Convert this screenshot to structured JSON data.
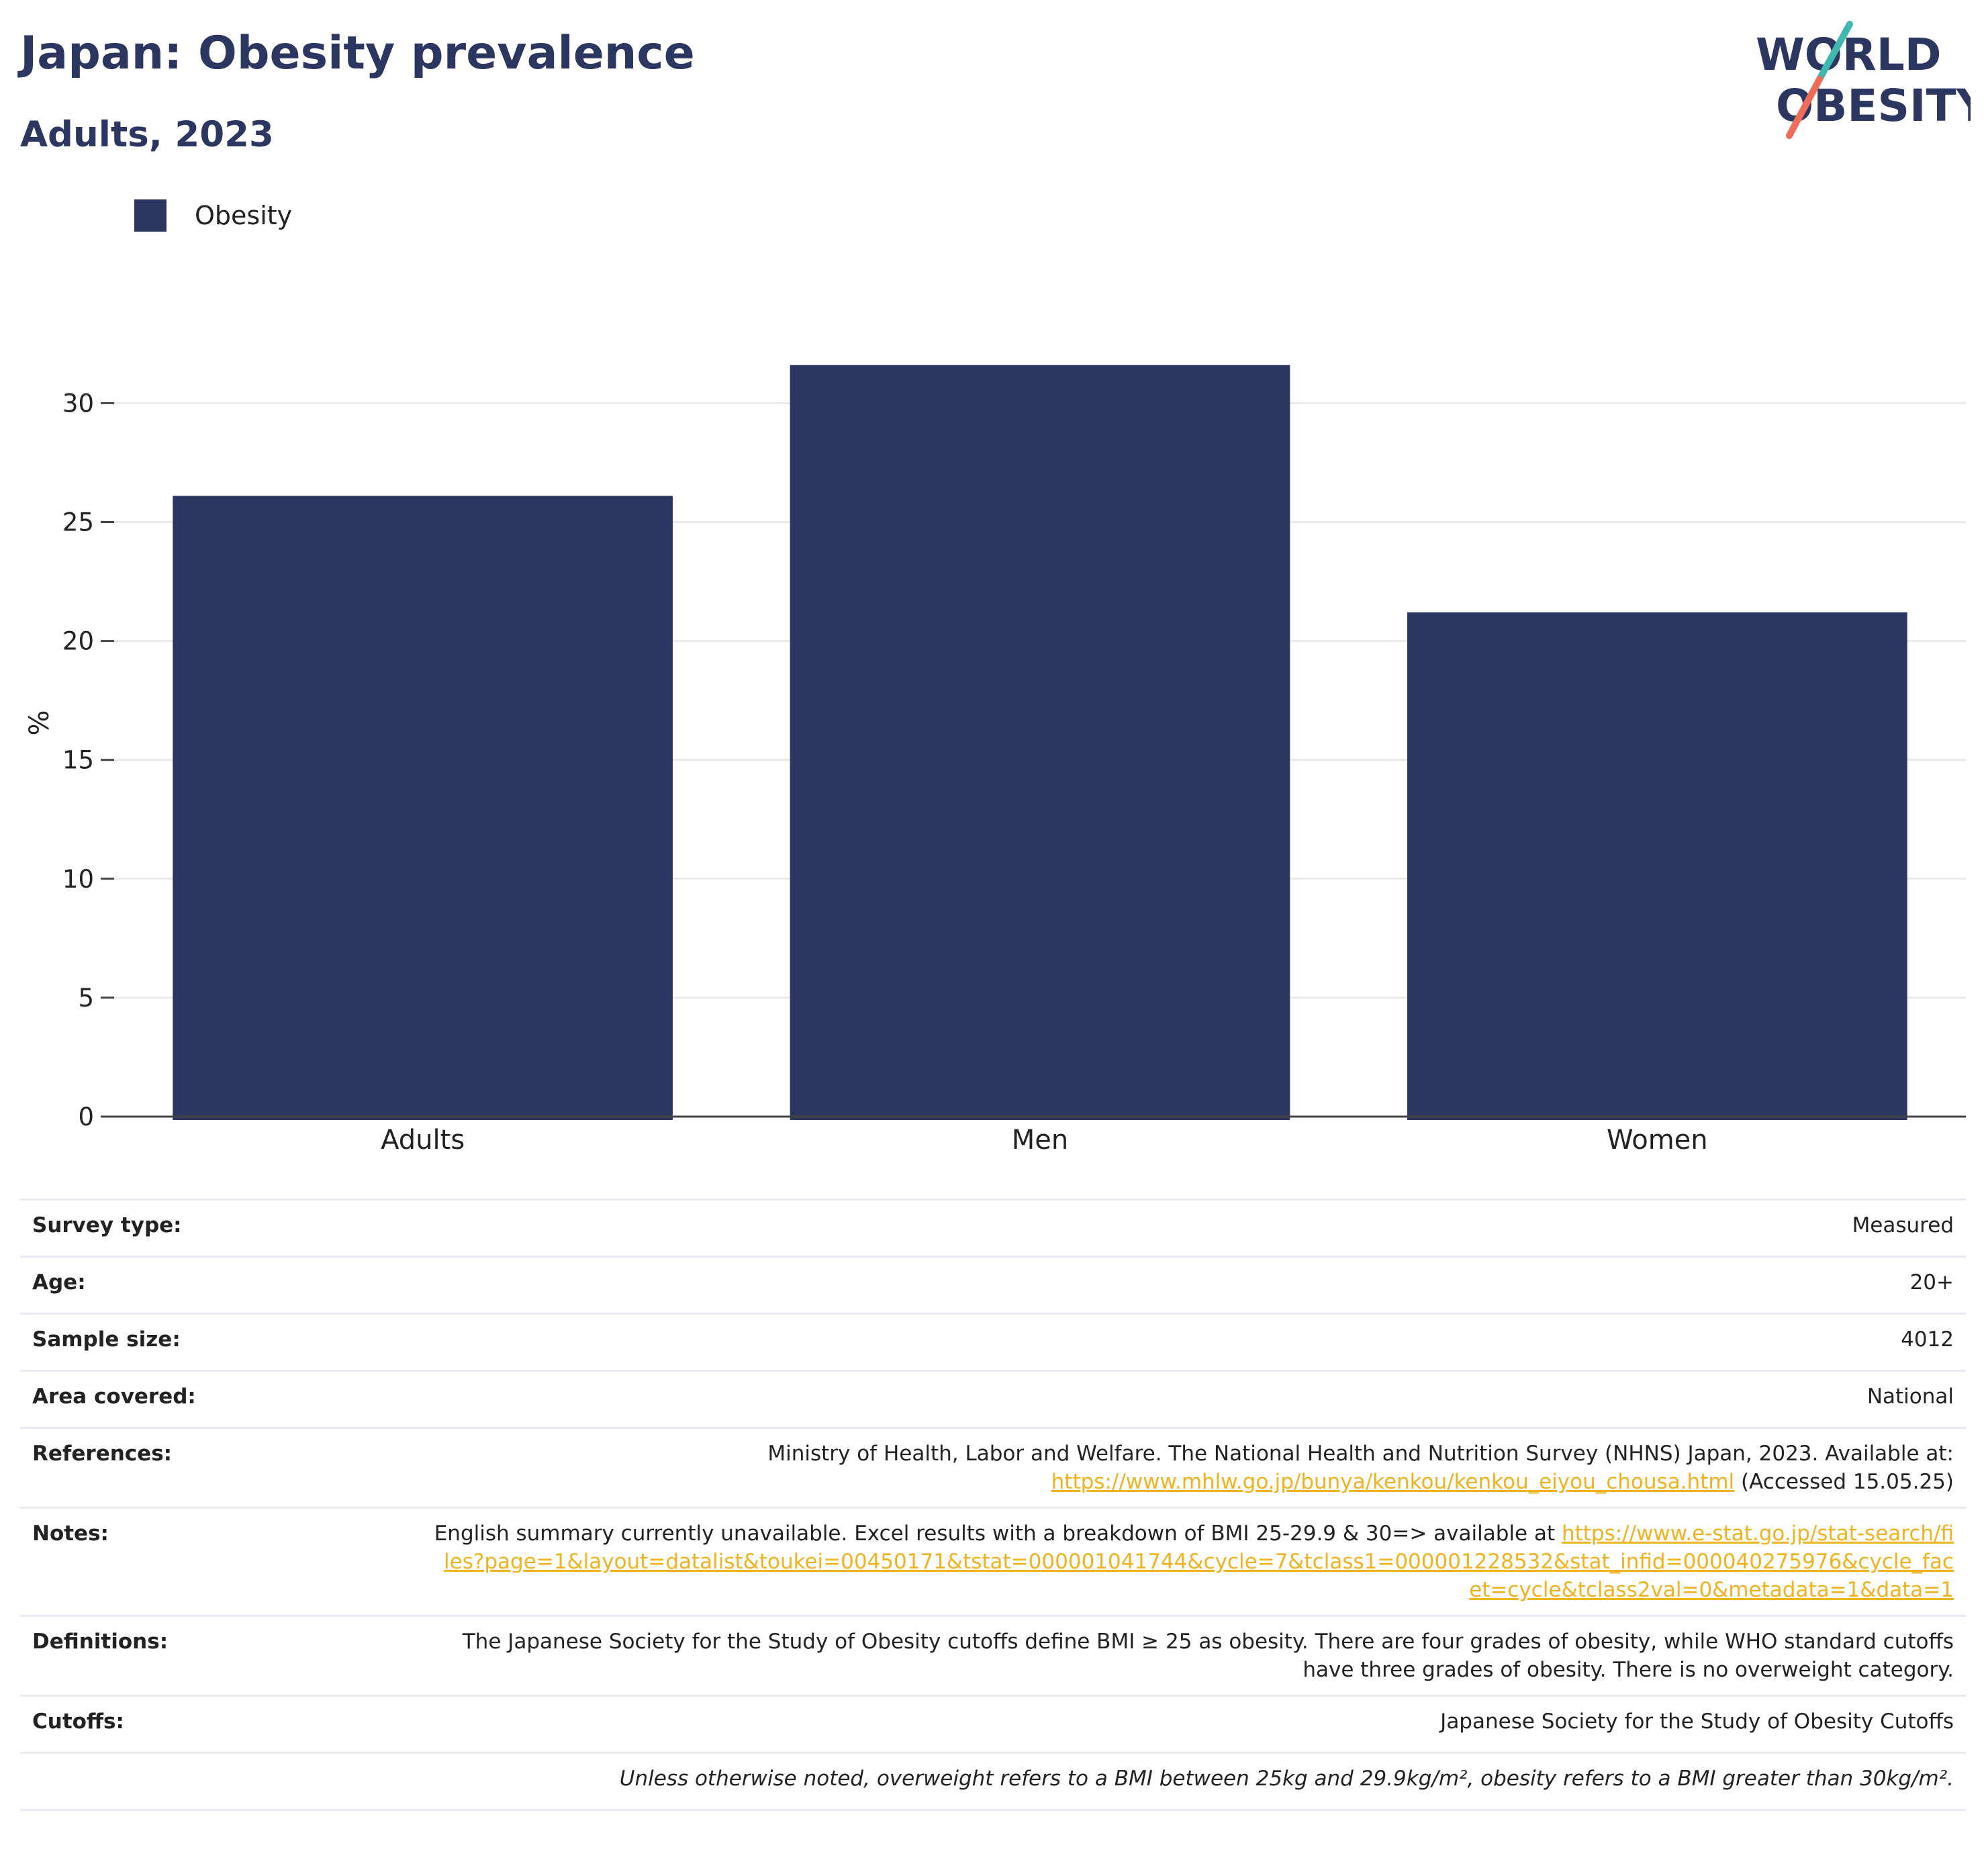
{
  "header": {
    "title": "Japan: Obesity prevalence",
    "subtitle": "Adults, 2023"
  },
  "logo": {
    "line1": "WORLD",
    "line2": "OBESITY"
  },
  "colors": {
    "bar": "#2b3661",
    "text": "#222222",
    "link": "#f0b21f",
    "logo_teal": "#3fb8b0",
    "logo_coral": "#ef6b5a"
  },
  "chart_data": {
    "type": "bar",
    "categories": [
      "Adults",
      "Men",
      "Women"
    ],
    "series": [
      {
        "name": "Obesity",
        "values": [
          26.1,
          31.6,
          21.2
        ]
      }
    ],
    "ylabel": "%",
    "xlabel": "",
    "ylim": [
      0,
      33.4
    ],
    "yticks": [
      0,
      5,
      10,
      15,
      20,
      25,
      30
    ],
    "grid": true,
    "legend": "top-left"
  },
  "info": {
    "survey_type": {
      "label": "Survey type:",
      "value": "Measured"
    },
    "age": {
      "label": "Age:",
      "value": "20+"
    },
    "sample_size": {
      "label": "Sample size:",
      "value": "4012"
    },
    "area": {
      "label": "Area covered:",
      "value": "National"
    },
    "references": {
      "label": "References:",
      "text": "Ministry of Health, Labor and Welfare. The National Health and Nutrition Survey (NHNS) Japan, 2023. Available at:",
      "link": "https://www.mhlw.go.jp/bunya/kenkou/kenkou_eiyou_chousa.html",
      "suffix": " (Accessed 15.05.25)"
    },
    "notes": {
      "label": "Notes:",
      "text": "English summary currently unavailable. Excel results with a breakdown of BMI 25-29.9 & 30=> available at ",
      "link": "https://www.e-stat.go.jp/stat-search/files?page=1&layout=datalist&toukei=00450171&tstat=000001041744&cycle=7&tclass1=000001228532&stat_infid=000040275976&cycle_facet=cycle&tclass2val=0&metadata=1&data=1"
    },
    "definitions": {
      "label": "Definitions:",
      "value": "The Japanese Society for the Study of Obesity cutoffs define BMI ≥ 25 as obesity. There are four grades of obesity, while WHO standard cutoffs have three grades of obesity. There is no overweight category."
    },
    "cutoffs": {
      "label": "Cutoffs:",
      "value": "Japanese Society for the Study of Obesity Cutoffs"
    },
    "footnote": "Unless otherwise noted, overweight refers to a BMI between 25kg and 29.9kg/m², obesity refers to a BMI greater than 30kg/m²."
  }
}
